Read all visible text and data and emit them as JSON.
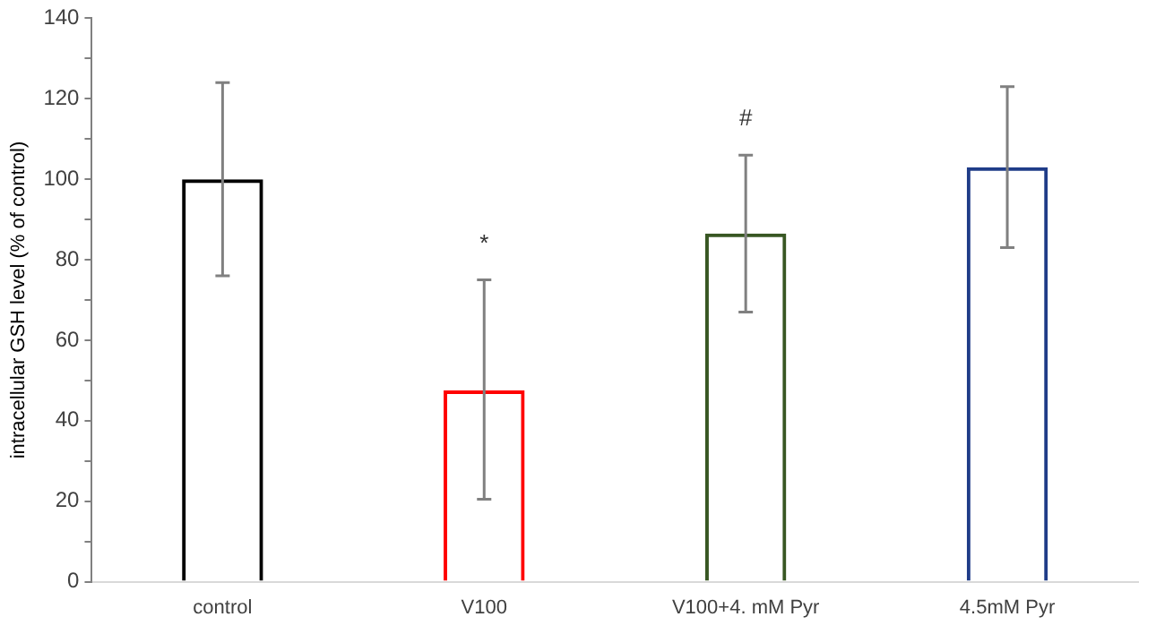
{
  "chart_data": {
    "type": "bar",
    "ylabel": "intracellular GSH level (% of control)",
    "categories": [
      "control",
      "V100",
      "V100+4. mM Pyr",
      "4.5mM Pyr"
    ],
    "values": [
      100,
      47.5,
      86.5,
      103
    ],
    "colors": [
      "#000000",
      "#ff0000",
      "#385723",
      "#1f3c88"
    ],
    "errors": [
      [
        76,
        124
      ],
      [
        20.5,
        75
      ],
      [
        67,
        106
      ],
      [
        83,
        123
      ]
    ],
    "ylim": [
      0,
      140
    ],
    "yticks": [
      0,
      {
        "value": 10,
        "label": null
      },
      20,
      {
        "value": 30,
        "label": null
      },
      40,
      {
        "value": 50,
        "label": null
      },
      60,
      {
        "value": 70,
        "label": null
      },
      80,
      {
        "value": 90,
        "label": null
      },
      100,
      {
        "value": 110,
        "label": null
      },
      120,
      {
        "value": 130,
        "label": null
      },
      140
    ],
    "annotations": [
      "*",
      "#"
    ],
    "grid": false,
    "legend": false
  }
}
